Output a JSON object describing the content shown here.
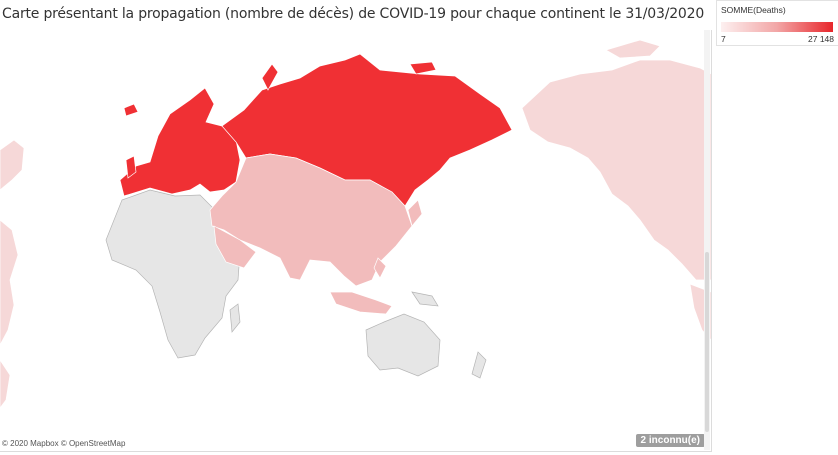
{
  "title": "Carte présentant la propagation (nombre de décès) de COVID-19 pour chaque continent le 31/03/2020",
  "legend": {
    "title": "SOMME(Deaths)",
    "min_label": "7",
    "max_label": "27 148",
    "min_color": "#fdf0f0",
    "max_color": "#e8262b"
  },
  "map": {
    "attribution": "© 2020 Mapbox © OpenStreetMap",
    "unknown_badge": "2 inconnu(e)",
    "regions": [
      {
        "name": "Europe",
        "level": "high",
        "color": "#f03034"
      },
      {
        "name": "Asia",
        "level": "medium-low",
        "color": "#f2bcbc"
      },
      {
        "name": "Americas",
        "level": "low",
        "color": "#f6d8d8"
      },
      {
        "name": "Africa",
        "level": "none",
        "color": "#e6e6e6"
      },
      {
        "name": "Oceania",
        "level": "none",
        "color": "#e6e6e6"
      }
    ]
  }
}
